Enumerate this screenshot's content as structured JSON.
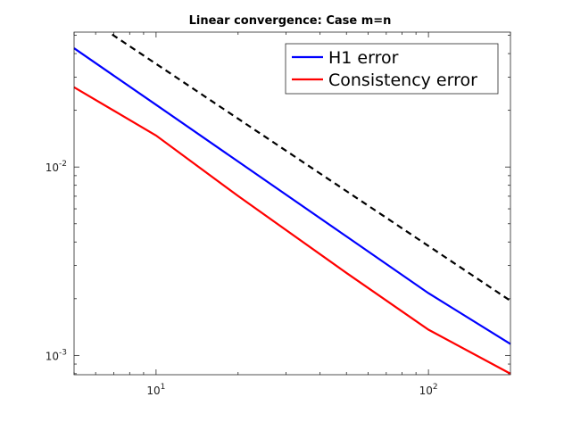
{
  "chart_data": {
    "type": "line",
    "title": "Linear convergence: Case m=n",
    "xlabel": "",
    "ylabel": "",
    "xscale": "log",
    "yscale": "log",
    "xlim": [
      5,
      200
    ],
    "ylim": [
      0.00079,
      0.052
    ],
    "grid": false,
    "legend_position": "top-right",
    "x_ticks": [
      {
        "value": 10,
        "base": "10",
        "exp": "1"
      },
      {
        "value": 100,
        "base": "10",
        "exp": "2"
      }
    ],
    "y_ticks": [
      {
        "value": 0.01,
        "base": "10",
        "exp": "-2"
      },
      {
        "value": 0.001,
        "base": "10",
        "exp": "-3"
      }
    ],
    "series": [
      {
        "name": "H1 error",
        "color": "#0000ff",
        "style": "solid",
        "x": [
          5,
          10,
          20,
          50,
          100,
          200
        ],
        "y": [
          0.0427,
          0.0214,
          0.0107,
          0.00428,
          0.00214,
          0.00115
        ]
      },
      {
        "name": "Consistency error",
        "color": "#ff0000",
        "style": "solid",
        "x": [
          5,
          10,
          20,
          50,
          100,
          200
        ],
        "y": [
          0.0265,
          0.0147,
          0.00702,
          0.00274,
          0.00137,
          0.0008
        ]
      },
      {
        "name": "",
        "color": "#000000",
        "style": "dashed",
        "x": [
          6.9,
          200
        ],
        "y": [
          0.0505,
          0.00195
        ]
      }
    ]
  }
}
